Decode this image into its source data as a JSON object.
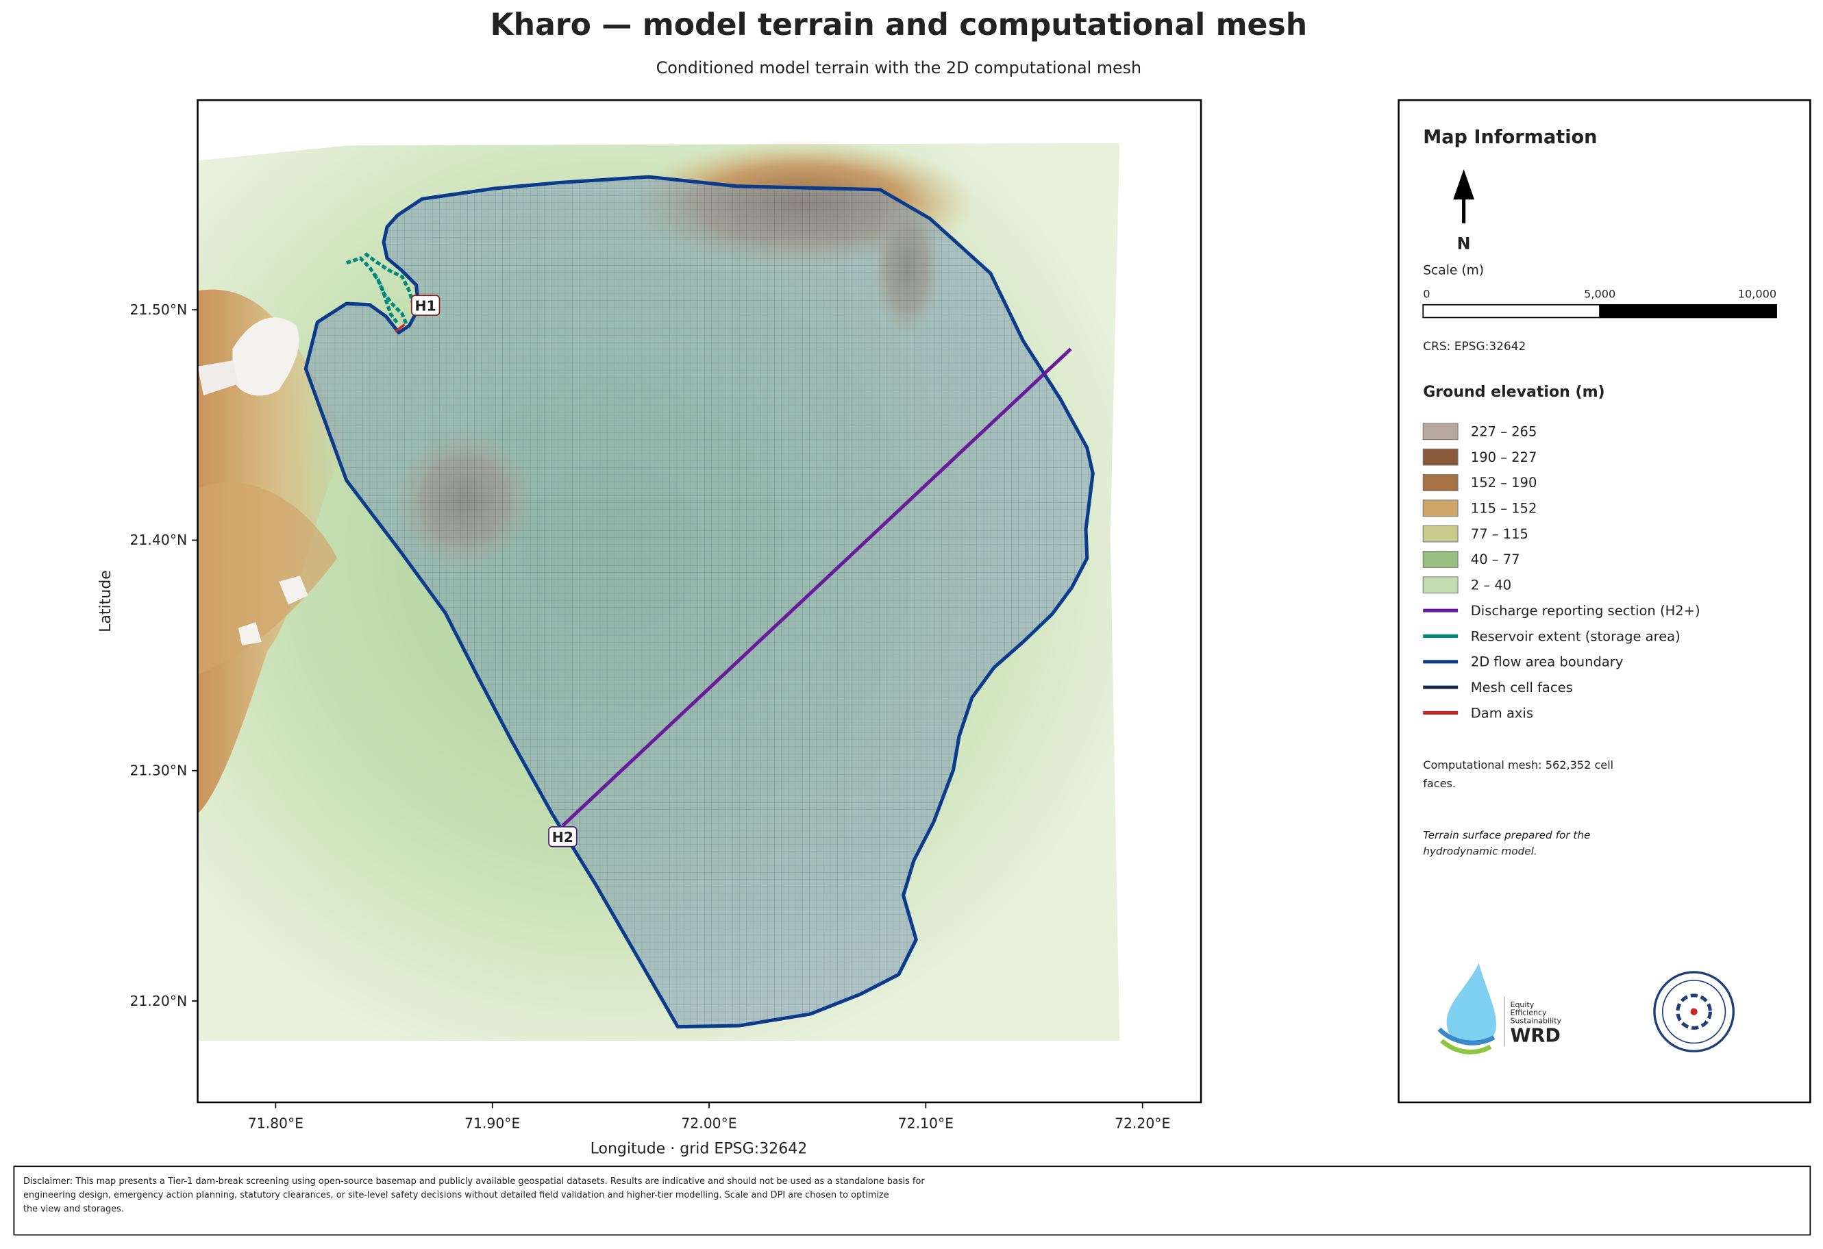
{
  "title": "Kharo — model terrain and computational mesh",
  "subtitle": "Conditioned model terrain with the 2D computational mesh",
  "map": {
    "xlabel": "Longitude   ·   grid EPSG:32642",
    "ylabel": "Latitude",
    "xlim": [
      71.764,
      72.227
    ],
    "ylim": [
      21.156,
      21.591
    ],
    "xticks": [
      {
        "value": 71.8,
        "label": "71.80°E"
      },
      {
        "value": 71.9,
        "label": "71.90°E"
      },
      {
        "value": 72.0,
        "label": "72.00°E"
      },
      {
        "value": 72.1,
        "label": "72.10°E"
      },
      {
        "value": 72.2,
        "label": "72.20°E"
      }
    ],
    "yticks": [
      {
        "value": 21.2,
        "label": "21.20°N"
      },
      {
        "value": 21.3,
        "label": "21.30°N"
      },
      {
        "value": 21.4,
        "label": "21.40°N"
      },
      {
        "value": 21.5,
        "label": "21.50°N"
      }
    ],
    "labels": [
      "H1",
      "H2"
    ]
  },
  "panel": {
    "title": "Map Information",
    "north": "N",
    "scale_title": "Scale (m)",
    "scale_ticks": [
      0,
      {
        "value": 5000,
        "label": "5,000"
      },
      {
        "value": 10000,
        "label": "10,000"
      }
    ],
    "crs": "CRS: EPSG:32642",
    "legend_title": "Ground elevation (m)",
    "legend": [
      {
        "label": "227 – 265",
        "color": "#b8a9a0",
        "kind": "patch"
      },
      {
        "label": "190 – 227",
        "color": "#8b5a3c",
        "kind": "patch"
      },
      {
        "label": "152 – 190",
        "color": "#a47244",
        "kind": "patch"
      },
      {
        "label": "115 – 152",
        "color": "#cfa56a",
        "kind": "patch"
      },
      {
        "label": "77 – 115",
        "color": "#c9c98b",
        "kind": "patch"
      },
      {
        "label": "40 – 77",
        "color": "#97bf82",
        "kind": "patch"
      },
      {
        "label": "2 – 40",
        "color": "#c2dcb0",
        "kind": "patch"
      },
      {
        "label": "Discharge reporting section (H2+)",
        "color": "#6a1b9a",
        "kind": "line"
      },
      {
        "label": "Reservoir extent (storage area)",
        "color": "#00897b",
        "kind": "line"
      },
      {
        "label": "2D flow area boundary",
        "color": "#0d3b8c",
        "kind": "line"
      },
      {
        "label": "Mesh cell faces",
        "color": "#1a2a44",
        "kind": "line"
      },
      {
        "label": "Dam axis",
        "color": "#c62828",
        "kind": "line"
      }
    ],
    "mesh_note": [
      "Computational mesh: 562,352 cell",
      "faces."
    ],
    "terrain_note": [
      "Terrain surface prepared for the",
      "hydrodynamic model."
    ]
  },
  "logo_text": [
    "Equity",
    "Efficiency",
    "Sustainability",
    "WRD"
  ],
  "disclaimer": [
    "Disclaimer: This map presents a Tier-1 dam-break screening using open-source basemap and publicly available geospatial datasets. Results are indicative and should not be used as a standalone basis for",
    "engineering design, emergency action planning, statutory clearances, or site-level safety decisions without detailed field validation and higher-tier modelling. Scale and DPI are chosen to optimize",
    "the view and storages."
  ]
}
